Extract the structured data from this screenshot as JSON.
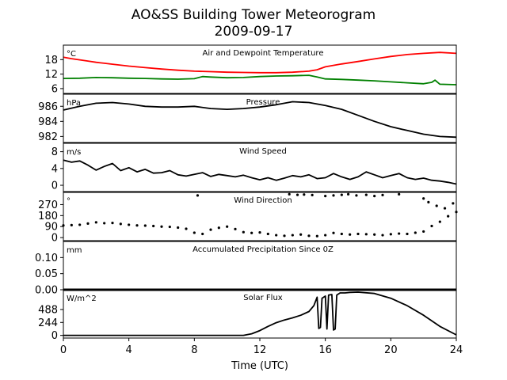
{
  "title": "AO&SS Building Tower Meteorogram",
  "subtitle": "2009-09-17",
  "chart_data": [
    {
      "type": "line",
      "panel_title": "Air and Dewpoint Temperature",
      "unit": "°C",
      "ylim": [
        4,
        24
      ],
      "yticks": [
        6,
        12,
        18
      ],
      "series": [
        {
          "color": "#ff0000",
          "x": [
            0,
            0.5,
            1,
            1.5,
            2,
            2.5,
            3,
            4,
            5,
            6,
            7,
            8,
            9,
            10,
            11,
            12,
            13,
            14,
            15,
            15.5,
            16,
            17,
            18,
            19,
            20,
            21,
            22,
            23,
            24
          ],
          "values": [
            19,
            18.4,
            17.9,
            17.4,
            16.9,
            16.5,
            16.1,
            15.3,
            14.7,
            14.1,
            13.6,
            13.2,
            13.0,
            12.8,
            12.7,
            12.6,
            12.6,
            12.8,
            13.2,
            13.8,
            15.0,
            16.2,
            17.2,
            18.3,
            19.3,
            20.1,
            20.6,
            21.0,
            20.6
          ]
        },
        {
          "color": "#008000",
          "x": [
            0,
            1,
            2,
            3,
            4,
            5,
            6,
            7,
            8,
            8.5,
            9,
            10,
            11,
            12,
            13,
            14,
            15,
            15.5,
            16,
            17,
            18,
            19,
            20,
            21,
            22,
            22.5,
            22.7,
            23,
            24
          ],
          "values": [
            10.2,
            10.3,
            10.6,
            10.5,
            10.3,
            10.2,
            10.0,
            9.9,
            10.1,
            11.0,
            10.8,
            10.5,
            10.6,
            11.0,
            11.2,
            11.3,
            11.5,
            10.8,
            10.0,
            9.8,
            9.5,
            9.2,
            8.8,
            8.4,
            8.0,
            8.6,
            9.5,
            7.8,
            7.6
          ]
        }
      ]
    },
    {
      "type": "line",
      "panel_title": "Pressure",
      "unit": "hPa",
      "ylim": [
        981.2,
        987.6
      ],
      "yticks": [
        982,
        984,
        986
      ],
      "series": [
        {
          "color": "#000000",
          "x": [
            0,
            1,
            2,
            3,
            4,
            5,
            6,
            7,
            8,
            9,
            10,
            11,
            12,
            13,
            14,
            15,
            16,
            17,
            18,
            19,
            20,
            21,
            22,
            23,
            24
          ],
          "values": [
            985.5,
            986.0,
            986.4,
            986.5,
            986.3,
            986.0,
            985.9,
            985.9,
            986.0,
            985.7,
            985.6,
            985.7,
            985.9,
            986.2,
            986.6,
            986.5,
            986.1,
            985.6,
            984.8,
            984.0,
            983.3,
            982.8,
            982.3,
            982.0,
            981.9
          ]
        }
      ]
    },
    {
      "type": "line",
      "panel_title": "Wind Speed",
      "unit": "m/s",
      "ylim": [
        -1.5,
        10
      ],
      "yticks": [
        0,
        4,
        8
      ],
      "series": [
        {
          "color": "#000000",
          "x": [
            0,
            0.5,
            1,
            1.5,
            2,
            2.5,
            3,
            3.5,
            4,
            4.5,
            5,
            5.5,
            6,
            6.5,
            7,
            7.5,
            8,
            8.5,
            9,
            9.5,
            10,
            10.5,
            11,
            11.5,
            12,
            12.5,
            13,
            13.5,
            14,
            14.5,
            15,
            15.5,
            16,
            16.5,
            17,
            17.5,
            18,
            18.5,
            19,
            19.5,
            20,
            20.5,
            21,
            21.5,
            22,
            22.5,
            23,
            23.5,
            24
          ],
          "values": [
            6.0,
            5.5,
            5.8,
            4.8,
            3.6,
            4.5,
            5.2,
            3.5,
            4.2,
            3.2,
            3.8,
            2.9,
            3.0,
            3.5,
            2.5,
            2.2,
            2.6,
            3.0,
            2.1,
            2.6,
            2.3,
            2.0,
            2.4,
            1.8,
            1.3,
            1.8,
            1.2,
            1.7,
            2.3,
            2.0,
            2.5,
            1.6,
            1.8,
            2.8,
            2.0,
            1.4,
            2.0,
            3.2,
            2.5,
            1.8,
            2.3,
            2.8,
            1.8,
            1.4,
            1.7,
            1.2,
            1.0,
            0.7,
            0.3
          ]
        }
      ]
    },
    {
      "type": "scatter",
      "panel_title": "Wind Direction",
      "unit": "°",
      "ylim": [
        -25,
        370
      ],
      "yticks": [
        0,
        90,
        180,
        270
      ],
      "series": [
        {
          "color": "#000000",
          "x": [
            0,
            0.5,
            1,
            1.5,
            2,
            2.5,
            3,
            3.5,
            4,
            4.5,
            5,
            5.5,
            6,
            6.5,
            7,
            7.5,
            8,
            8.5,
            9,
            9.5,
            10,
            10.5,
            11,
            11.5,
            12,
            12.5,
            13,
            13.5,
            14,
            14.5,
            15,
            15.5,
            16,
            16.5,
            17,
            17.5,
            18,
            18.5,
            19,
            19.5,
            20,
            20.5,
            21,
            21.5,
            22,
            22.5,
            23,
            23.5,
            24
          ],
          "values": [
            100,
            102,
            105,
            115,
            125,
            118,
            120,
            112,
            105,
            100,
            98,
            95,
            90,
            88,
            82,
            72,
            40,
            30,
            65,
            80,
            90,
            70,
            45,
            38,
            42,
            30,
            20,
            15,
            20,
            25,
            15,
            12,
            20,
            38,
            30,
            25,
            30,
            28,
            25,
            20,
            28,
            33,
            30,
            40,
            50,
            95,
            130,
            175,
            210
          ]
        },
        {
          "color": "#000000",
          "x": [
            8.2,
            13.8,
            14.3,
            14.7,
            15.2,
            16.0,
            16.5,
            17.0,
            17.4,
            17.9,
            18.5,
            19.0,
            19.5,
            20.5,
            22.0,
            22.3,
            22.8,
            23.3,
            23.8
          ],
          "values": [
            345,
            355,
            350,
            352,
            348,
            340,
            345,
            350,
            355,
            345,
            350,
            340,
            348,
            355,
            320,
            290,
            260,
            240,
            280
          ]
        }
      ]
    },
    {
      "type": "line",
      "panel_title": "Accumulated Precipitation Since 0Z",
      "unit": "mm",
      "ylim": [
        0,
        0.15
      ],
      "yticks": [
        0.0,
        0.05,
        0.1
      ],
      "series": [
        {
          "color": "#000000",
          "x": [
            0,
            24
          ],
          "values": [
            0,
            0
          ]
        }
      ]
    },
    {
      "type": "line",
      "panel_title": "Solar Flux",
      "unit": "W/m^2",
      "ylim": [
        -50,
        860
      ],
      "yticks": [
        0,
        244,
        488
      ],
      "xlabel": "Time (UTC)",
      "xlim": [
        0,
        24
      ],
      "xticks": [
        0,
        4,
        8,
        12,
        16,
        20,
        24
      ],
      "series": [
        {
          "color": "#000000",
          "x": [
            0,
            11.0,
            11.5,
            12.0,
            12.5,
            13.0,
            13.5,
            14.0,
            14.5,
            15.0,
            15.3,
            15.5,
            15.6,
            15.7,
            15.8,
            16.0,
            16.1,
            16.2,
            16.4,
            16.5,
            16.6,
            16.7,
            16.9,
            17.2,
            17.5,
            18.0,
            19.0,
            20.0,
            21.0,
            22.0,
            23.0,
            24.0
          ],
          "values": [
            0,
            0,
            30,
            90,
            170,
            240,
            290,
            330,
            380,
            450,
            560,
            720,
            130,
            150,
            700,
            740,
            120,
            760,
            770,
            100,
            120,
            760,
            800,
            800,
            810,
            815,
            790,
            700,
            560,
            380,
            170,
            10
          ]
        }
      ]
    }
  ]
}
